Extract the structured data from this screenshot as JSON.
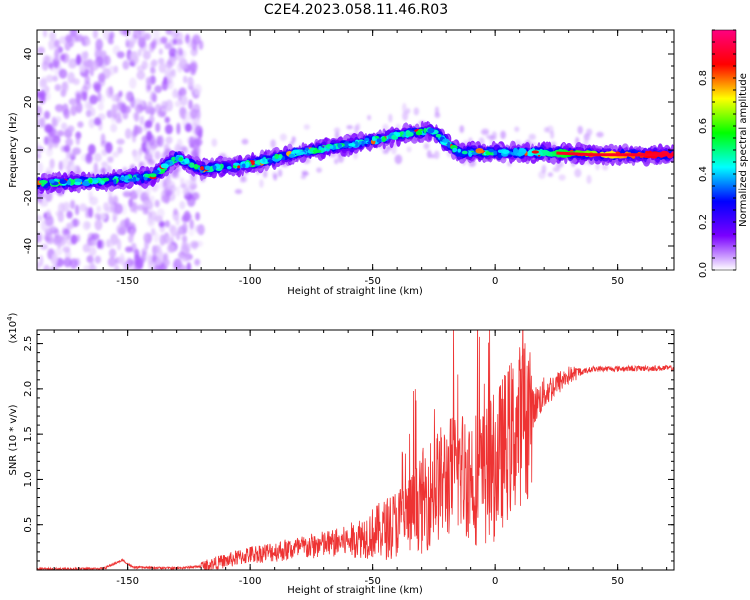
{
  "title": "C2E4.2023.058.11.46.R03",
  "colors": {
    "line": "#ee3333",
    "axis": "#000000",
    "background": "#ffffff"
  },
  "chart_data": [
    {
      "type": "heatmap",
      "name": "spectrogram",
      "xlabel": "Height of straight line (km)",
      "ylabel": "Frequency (Hz)",
      "xlim": [
        -187,
        73
      ],
      "ylim": [
        -50,
        50
      ],
      "xticks": [
        -150,
        -100,
        -50,
        0,
        50
      ],
      "xtick_labels": [
        "-150",
        "-100",
        "-50",
        "0",
        "50"
      ],
      "yticks": [
        -40,
        -20,
        0,
        20,
        40
      ],
      "ytick_labels": [
        "-40",
        "-20",
        "0",
        "20",
        "40"
      ],
      "ridge": [
        {
          "x": -187,
          "y": -14
        },
        {
          "x": -160,
          "y": -13
        },
        {
          "x": -140,
          "y": -11
        },
        {
          "x": -130,
          "y": -3
        },
        {
          "x": -120,
          "y": -8
        },
        {
          "x": -100,
          "y": -6
        },
        {
          "x": -80,
          "y": -1
        },
        {
          "x": -60,
          "y": 2
        },
        {
          "x": -45,
          "y": 5
        },
        {
          "x": -35,
          "y": 7
        },
        {
          "x": -25,
          "y": 8
        },
        {
          "x": -20,
          "y": 3
        },
        {
          "x": -15,
          "y": -1
        },
        {
          "x": -5,
          "y": -1
        },
        {
          "x": 0,
          "y": -1
        },
        {
          "x": 20,
          "y": -1
        },
        {
          "x": 40,
          "y": -2
        },
        {
          "x": 73,
          "y": -2
        }
      ],
      "colorbar": {
        "label": "Normalized spectral amplitude",
        "range": [
          0.0,
          1.0
        ],
        "ticks": [
          0.0,
          0.2,
          0.4,
          0.6,
          0.8
        ],
        "tick_labels": [
          "0.0",
          "0.2",
          "0.4",
          "0.6",
          "0.8"
        ],
        "colormap": [
          "#ffffff",
          "#7a00ff",
          "#0000ff",
          "#00ffff",
          "#00ff00",
          "#ffff00",
          "#ff0000",
          "#ff0080"
        ]
      }
    },
    {
      "type": "line",
      "name": "snr",
      "xlabel": "Height of straight line (km)",
      "ylabel": "SNR (10 * v/v)",
      "scale_label": "(x10",
      "scale_exp": "4",
      "scale_close": ")",
      "xlim": [
        -187,
        73
      ],
      "ylim": [
        0,
        26500
      ],
      "xticks": [
        -150,
        -100,
        -50,
        0,
        50
      ],
      "xtick_labels": [
        "-150",
        "-100",
        "-50",
        "0",
        "50"
      ],
      "yticks": [
        5000,
        10000,
        15000,
        20000,
        25000
      ],
      "ytick_labels": [
        "0.5",
        "1.0",
        "1.5",
        "2.0",
        "2.5"
      ],
      "baseline": [
        {
          "x": -187,
          "y": 100
        },
        {
          "x": -160,
          "y": 150
        },
        {
          "x": -152,
          "y": 1100
        },
        {
          "x": -148,
          "y": 300
        },
        {
          "x": -130,
          "y": 200
        },
        {
          "x": -120,
          "y": 400
        },
        {
          "x": -110,
          "y": 1000
        },
        {
          "x": -100,
          "y": 1700
        },
        {
          "x": -80,
          "y": 2400
        },
        {
          "x": -60,
          "y": 3200
        },
        {
          "x": -45,
          "y": 4500
        },
        {
          "x": -35,
          "y": 6000
        },
        {
          "x": -25,
          "y": 9000
        },
        {
          "x": -15,
          "y": 11000
        },
        {
          "x": -5,
          "y": 10000
        },
        {
          "x": 0,
          "y": 11500
        },
        {
          "x": 5,
          "y": 14000
        },
        {
          "x": 10,
          "y": 16000
        },
        {
          "x": 20,
          "y": 19500
        },
        {
          "x": 30,
          "y": 21500
        },
        {
          "x": 40,
          "y": 22200
        },
        {
          "x": 73,
          "y": 22300
        }
      ]
    }
  ]
}
